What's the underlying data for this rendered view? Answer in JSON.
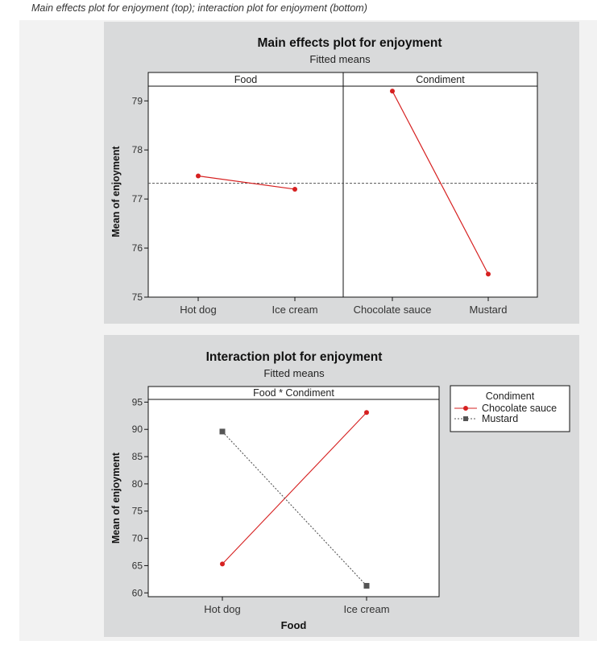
{
  "caption": "Main effects plot for enjoyment (top); interaction plot for enjoyment (bottom)",
  "colors": {
    "panel_bg": "#d9dadb",
    "plot_bg": "#ffffff",
    "chocolate": "#d62020",
    "mustard": "#555555",
    "mean_line": "#555555"
  },
  "chart_data": [
    {
      "type": "line",
      "title": "Main effects plot for enjoyment",
      "subtitle": "Fitted means",
      "ylabel": "Mean of enjoyment",
      "ylim": [
        75,
        79.3
      ],
      "yticks": [
        75,
        76,
        77,
        78,
        79
      ],
      "overall_mean": 77.32,
      "panels": [
        {
          "label": "Food",
          "categories": [
            "Hot dog",
            "Ice cream"
          ],
          "values": [
            77.47,
            77.2
          ]
        },
        {
          "label": "Condiment",
          "categories": [
            "Chocolate sauce",
            "Mustard"
          ],
          "values": [
            79.2,
            75.47
          ]
        }
      ]
    },
    {
      "type": "line",
      "title": "Interaction plot for enjoyment",
      "subtitle": "Fitted means",
      "strip_label": "Food * Condiment",
      "xlabel": "Food",
      "ylabel": "Mean of enjoyment",
      "categories": [
        "Hot dog",
        "Ice cream"
      ],
      "ylim": [
        59.3,
        95.5
      ],
      "yticks": [
        60,
        65,
        70,
        75,
        80,
        85,
        90,
        95
      ],
      "legend": {
        "title": "Condiment",
        "position": "right"
      },
      "series": [
        {
          "name": "Chocolate sauce",
          "values": [
            65.3,
            93.1
          ],
          "marker": "circle",
          "line": "solid"
        },
        {
          "name": "Mustard",
          "values": [
            89.6,
            61.3
          ],
          "marker": "square",
          "line": "dotted"
        }
      ]
    }
  ]
}
